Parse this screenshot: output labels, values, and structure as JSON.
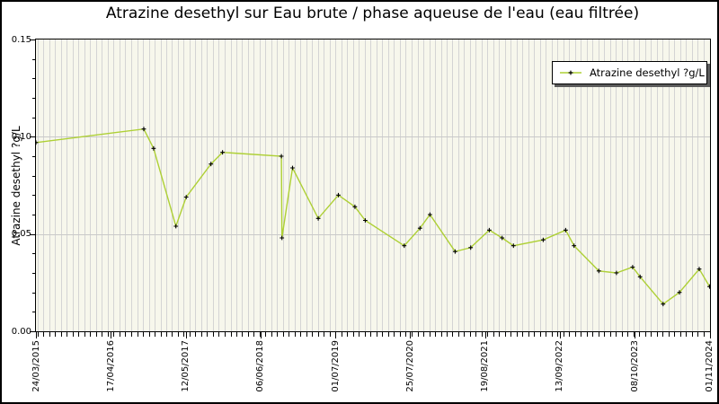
{
  "chart_data": {
    "type": "line",
    "title": "Atrazine desethyl sur Eau brute / phase aqueuse de l'eau (eau filtrée)",
    "ylabel": "Atrazine desethyl ?g/L",
    "xlabel": "",
    "ylim": [
      0,
      0.15
    ],
    "yticks": [
      {
        "label": "0.00",
        "value": 0.0
      },
      {
        "label": "0.05",
        "value": 0.05
      },
      {
        "label": "0.10",
        "value": 0.1
      },
      {
        "label": "0.15",
        "value": 0.15
      }
    ],
    "y_minor_tick_step": 0.01,
    "x_range": {
      "start": "2015-03-24",
      "end": "2024-11-01"
    },
    "xticks": [
      {
        "label": "24/03/2015",
        "date": "2015-03-24"
      },
      {
        "label": "17/04/2016",
        "date": "2016-04-17"
      },
      {
        "label": "12/05/2017",
        "date": "2017-05-12"
      },
      {
        "label": "06/06/2018",
        "date": "2018-06-06"
      },
      {
        "label": "01/07/2019",
        "date": "2019-07-01"
      },
      {
        "label": "25/07/2020",
        "date": "2020-07-25"
      },
      {
        "label": "19/08/2021",
        "date": "2021-08-19"
      },
      {
        "label": "13/09/2022",
        "date": "2022-09-13"
      },
      {
        "label": "08/10/2023",
        "date": "2023-10-08"
      },
      {
        "label": "01/11/2024",
        "date": "2024-11-01"
      }
    ],
    "grid": {
      "horizontal_at": [
        0.05,
        0.1
      ],
      "vertical": "monthly"
    },
    "legend": {
      "label": "Atrazine desethyl ?g/L",
      "position": "top-right"
    },
    "colors": {
      "line": "#aed035",
      "marker": "#000000",
      "plot_background": "#f7f7ec",
      "grid": "#d4d4d4",
      "legend_shadow": "#5c5c5c",
      "border": "#000000"
    },
    "series": [
      {
        "name": "Atrazine desethyl ?g/L",
        "marker": "plus",
        "points": [
          [
            "2015-03-24",
            0.097
          ],
          [
            "2016-10-06",
            0.104
          ],
          [
            "2016-11-26",
            0.094
          ],
          [
            "2017-03-22",
            0.054
          ],
          [
            "2017-05-15",
            0.069
          ],
          [
            "2017-09-21",
            0.086
          ],
          [
            "2017-11-20",
            0.092
          ],
          [
            "2018-09-23",
            0.09
          ],
          [
            "2018-09-26",
            0.048
          ],
          [
            "2018-11-20",
            0.084
          ],
          [
            "2019-04-03",
            0.058
          ],
          [
            "2019-07-17",
            0.07
          ],
          [
            "2019-10-11",
            0.064
          ],
          [
            "2019-12-04",
            0.057
          ],
          [
            "2020-06-24",
            0.044
          ],
          [
            "2020-09-14",
            0.053
          ],
          [
            "2020-11-05",
            0.06
          ],
          [
            "2021-03-16",
            0.041
          ],
          [
            "2021-06-05",
            0.043
          ],
          [
            "2021-09-10",
            0.052
          ],
          [
            "2021-11-16",
            0.048
          ],
          [
            "2022-01-14",
            0.044
          ],
          [
            "2022-06-18",
            0.047
          ],
          [
            "2022-10-13",
            0.052
          ],
          [
            "2022-11-26",
            0.044
          ],
          [
            "2023-04-04",
            0.031
          ],
          [
            "2023-07-05",
            0.03
          ],
          [
            "2023-09-27",
            0.033
          ],
          [
            "2023-11-05",
            0.028
          ],
          [
            "2024-03-04",
            0.014
          ],
          [
            "2024-05-28",
            0.02
          ],
          [
            "2024-09-08",
            0.032
          ],
          [
            "2024-11-01",
            0.023
          ]
        ]
      }
    ]
  }
}
